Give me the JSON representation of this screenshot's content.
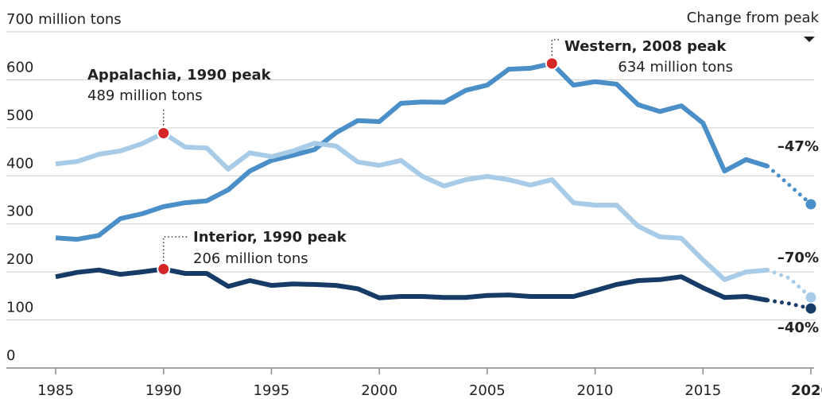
{
  "chart_data": {
    "type": "line",
    "right_header": "Change from peak",
    "x": [
      1985,
      1986,
      1987,
      1988,
      1989,
      1990,
      1991,
      1992,
      1993,
      1994,
      1995,
      1996,
      1997,
      1998,
      1999,
      2000,
      2001,
      2002,
      2003,
      2004,
      2005,
      2006,
      2007,
      2008,
      2009,
      2010,
      2011,
      2012,
      2013,
      2014,
      2015,
      2016,
      2017,
      2018,
      2019,
      2020
    ],
    "projection_from": 2018,
    "xlim": [
      1985,
      2020
    ],
    "xticks": [
      1985,
      1990,
      1995,
      2000,
      2005,
      2010,
      2015,
      2020
    ],
    "ylim": [
      0,
      700
    ],
    "yticks": [
      0,
      100,
      200,
      300,
      400,
      500,
      600,
      {
        "value": 700,
        "label": "700 million tons"
      }
    ],
    "grid": true,
    "peak_color": "#d62728",
    "series": [
      {
        "color": "#4b8fc8",
        "annotation": "Western, 2008 peak",
        "annotation_note": "634 million tons",
        "change_label": "–47%",
        "values": [
          271,
          268,
          276,
          311,
          321,
          336,
          344,
          348,
          371,
          410,
          432,
          443,
          455,
          490,
          515,
          513,
          551,
          554,
          553,
          578,
          589,
          622,
          624,
          634,
          589,
          596,
          591,
          548,
          534,
          546,
          510,
          410,
          434,
          420,
          381,
          341
        ]
      },
      {
        "color": "#a8cbe8",
        "annotation": "Appalachia, 1990 peak",
        "annotation_note": "489 million tons",
        "change_label": "–70%",
        "values": [
          425,
          430,
          445,
          452,
          467,
          489,
          460,
          458,
          414,
          448,
          440,
          452,
          468,
          462,
          429,
          422,
          432,
          399,
          379,
          392,
          399,
          392,
          381,
          392,
          344,
          339,
          339,
          295,
          273,
          270,
          225,
          184,
          200,
          204,
          187,
          147
        ]
      },
      {
        "color": "#163b66",
        "annotation": "Interior, 1990 peak",
        "annotation_note": "206 million tons",
        "change_label": "–40%",
        "values": [
          190,
          199,
          204,
          195,
          200,
          206,
          197,
          197,
          170,
          182,
          172,
          175,
          174,
          172,
          165,
          146,
          149,
          149,
          147,
          147,
          151,
          152,
          149,
          149,
          149,
          161,
          174,
          182,
          184,
          190,
          167,
          147,
          149,
          141,
          134,
          124
        ]
      }
    ]
  }
}
